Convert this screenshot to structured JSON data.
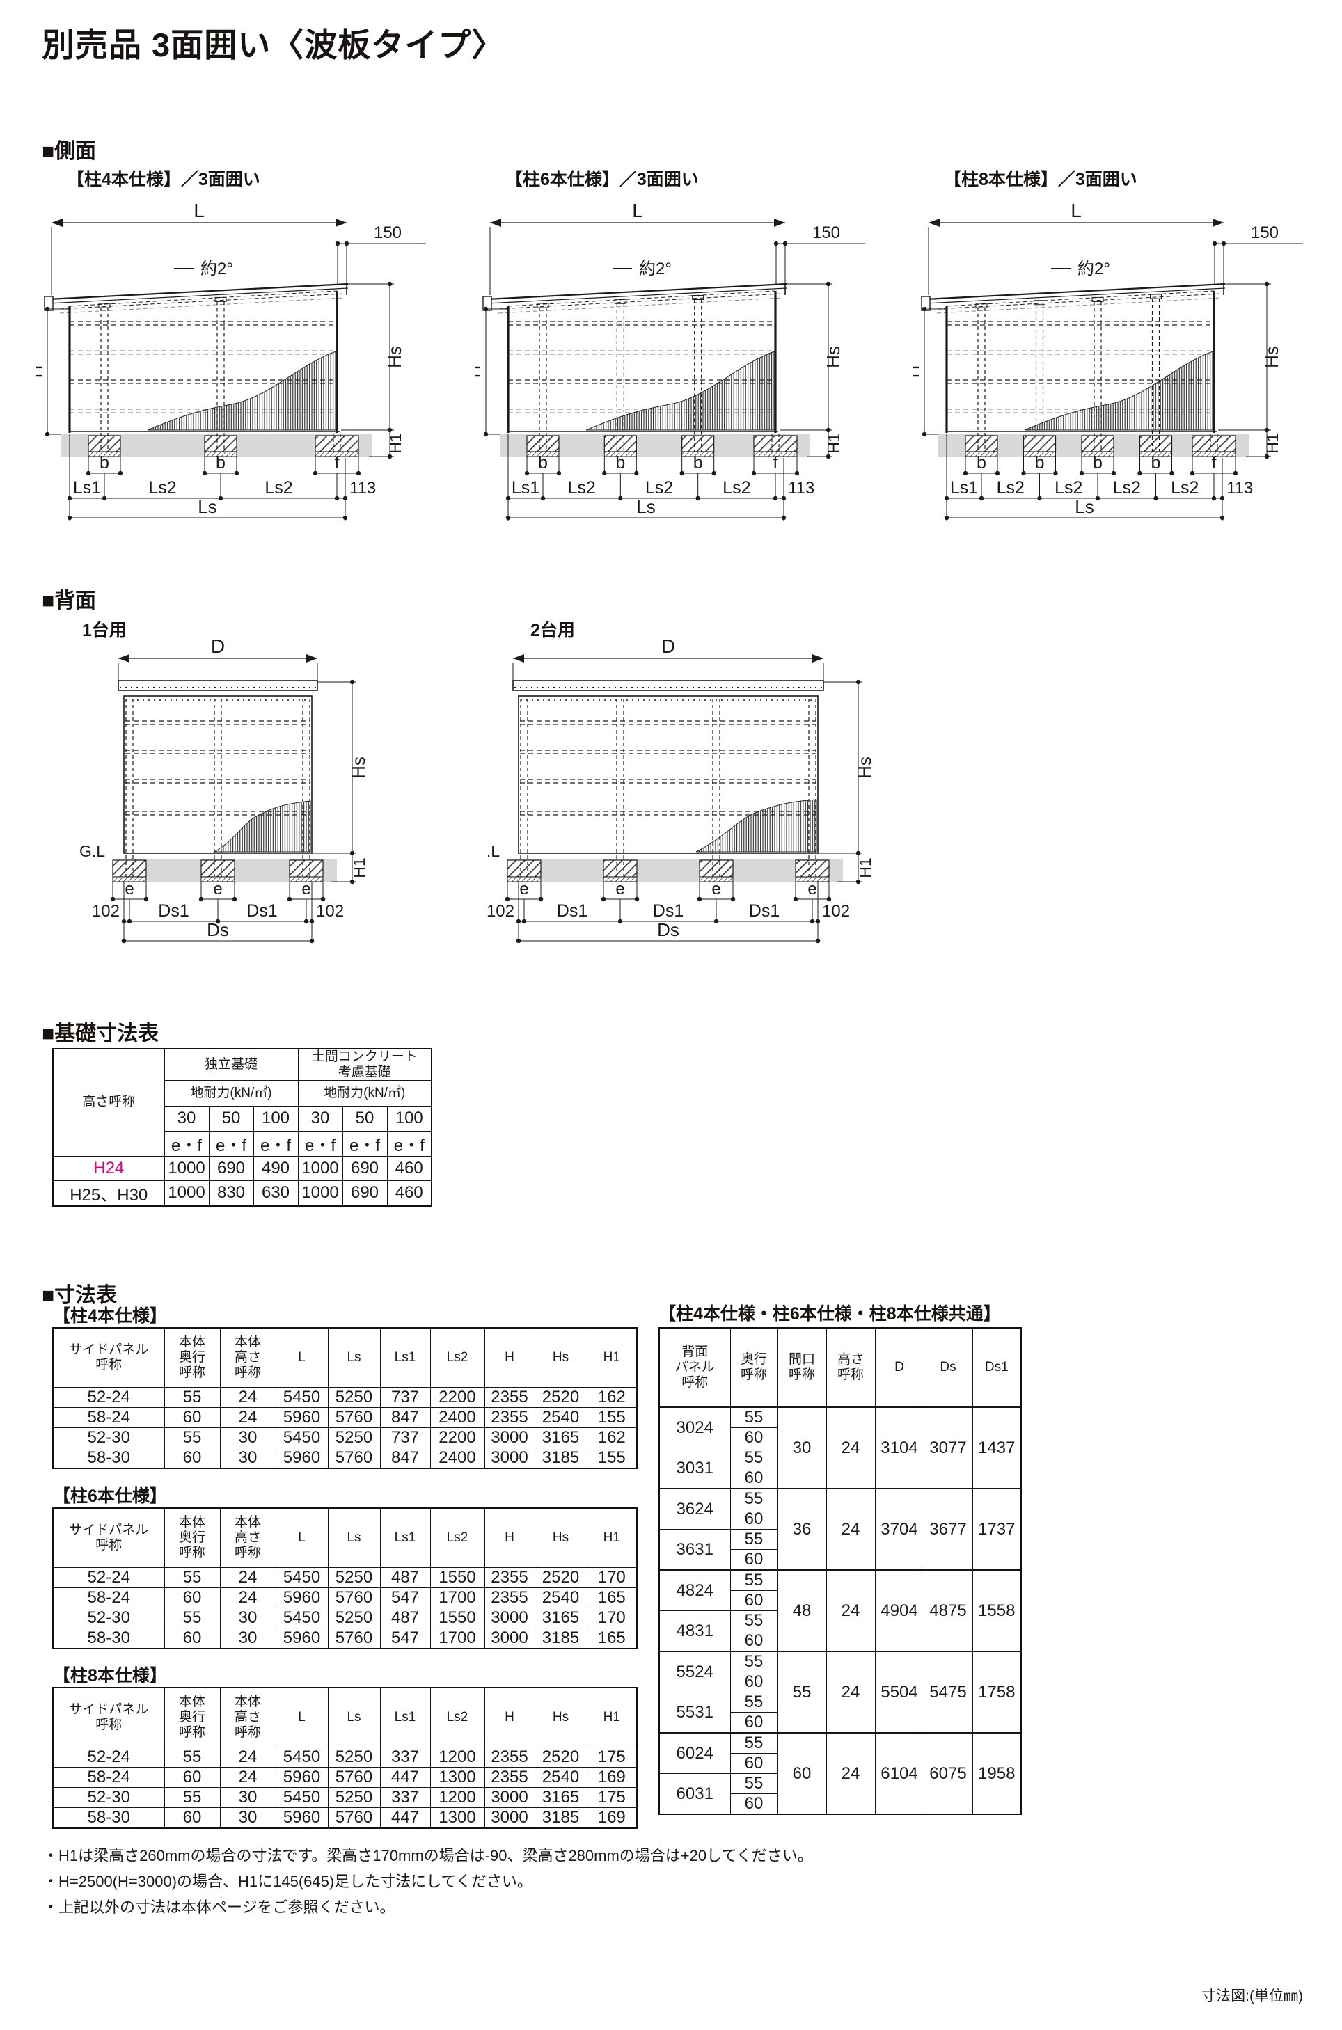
{
  "title": "別売品 3面囲い〈波板タイプ〉",
  "unit_note": "寸法図:(単位㎜)",
  "sections": {
    "side": "■側面",
    "back": "■背面",
    "foundation": "■基礎寸法表",
    "dimensions": "■寸法表"
  },
  "side_view": {
    "variants": [
      {
        "title": "【柱4本仕様】／3面囲い",
        "intermediate_posts": 2
      },
      {
        "title": "【柱6本仕様】／3面囲い",
        "intermediate_posts": 3
      },
      {
        "title": "【柱8本仕様】／3面囲い",
        "intermediate_posts": 4
      }
    ],
    "labels": {
      "overall": "L",
      "overhang": "150",
      "slope": "約2°",
      "height_front": "H",
      "height_side": "Hs",
      "ground_clearance": "H1",
      "foundation_b": "b",
      "foundation_f": "f",
      "span_first": "Ls1",
      "span_mid": "Ls2",
      "edge": "113",
      "side_total": "Ls"
    }
  },
  "back_view": {
    "variants": [
      {
        "title": "1台用",
        "posts": 3
      },
      {
        "title": "2台用",
        "posts": 4
      }
    ],
    "labels": {
      "overall": "D",
      "height_side": "Hs",
      "ground_line": "G.L",
      "ground_clearance": "H1",
      "foundation_e": "e",
      "edge": "102",
      "span": "Ds1",
      "back_total": "Ds"
    }
  },
  "foundation_table": {
    "corner_header": "高さ呼称",
    "groups": [
      "独立基礎",
      "土間コンクリート\n考慮基礎"
    ],
    "sub_header": "地耐力(kN/㎡)",
    "loads": [
      "30",
      "50",
      "100",
      "30",
      "50",
      "100"
    ],
    "ef_label": "e・f",
    "rows": [
      {
        "label": "H24",
        "highlight": true,
        "values": [
          "1000",
          "690",
          "490",
          "1000",
          "690",
          "460"
        ]
      },
      {
        "label": "H25、H30",
        "highlight": false,
        "values": [
          "1000",
          "830",
          "630",
          "1000",
          "690",
          "460"
        ]
      }
    ]
  },
  "dimension_tables": [
    {
      "title": "【柱4本仕様】",
      "headers": [
        "サイドパネル\n呼称",
        "本体\n奥行\n呼称",
        "本体\n高さ\n呼称",
        "L",
        "Ls",
        "Ls1",
        "Ls2",
        "H",
        "Hs",
        "H1"
      ],
      "rows": [
        [
          "52-24",
          "55",
          "24",
          "5450",
          "5250",
          "737",
          "2200",
          "2355",
          "2520",
          "162"
        ],
        [
          "58-24",
          "60",
          "24",
          "5960",
          "5760",
          "847",
          "2400",
          "2355",
          "2540",
          "155"
        ],
        [
          "52-30",
          "55",
          "30",
          "5450",
          "5250",
          "737",
          "2200",
          "3000",
          "3165",
          "162"
        ],
        [
          "58-30",
          "60",
          "30",
          "5960",
          "5760",
          "847",
          "2400",
          "3000",
          "3185",
          "155"
        ]
      ]
    },
    {
      "title": "【柱6本仕様】",
      "headers": [
        "サイドパネル\n呼称",
        "本体\n奥行\n呼称",
        "本体\n高さ\n呼称",
        "L",
        "Ls",
        "Ls1",
        "Ls2",
        "H",
        "Hs",
        "H1"
      ],
      "rows": [
        [
          "52-24",
          "55",
          "24",
          "5450",
          "5250",
          "487",
          "1550",
          "2355",
          "2520",
          "170"
        ],
        [
          "58-24",
          "60",
          "24",
          "5960",
          "5760",
          "547",
          "1700",
          "2355",
          "2540",
          "165"
        ],
        [
          "52-30",
          "55",
          "30",
          "5450",
          "5250",
          "487",
          "1550",
          "3000",
          "3165",
          "170"
        ],
        [
          "58-30",
          "60",
          "30",
          "5960",
          "5760",
          "547",
          "1700",
          "3000",
          "3185",
          "165"
        ]
      ]
    },
    {
      "title": "【柱8本仕様】",
      "headers": [
        "サイドパネル\n呼称",
        "本体\n奥行\n呼称",
        "本体\n高さ\n呼称",
        "L",
        "Ls",
        "Ls1",
        "Ls2",
        "H",
        "Hs",
        "H1"
      ],
      "rows": [
        [
          "52-24",
          "55",
          "24",
          "5450",
          "5250",
          "337",
          "1200",
          "2355",
          "2520",
          "175"
        ],
        [
          "58-24",
          "60",
          "24",
          "5960",
          "5760",
          "447",
          "1300",
          "2355",
          "2540",
          "169"
        ],
        [
          "52-30",
          "55",
          "30",
          "5450",
          "5250",
          "337",
          "1200",
          "3000",
          "3165",
          "175"
        ],
        [
          "58-30",
          "60",
          "30",
          "5960",
          "5760",
          "447",
          "1300",
          "3000",
          "3185",
          "169"
        ]
      ]
    }
  ],
  "common_table": {
    "title": "【柱4本仕様・柱6本仕様・柱8本仕様共通】",
    "headers": [
      "背面\nパネル\n呼称",
      "奥行\n呼称",
      "間口\n呼称",
      "高さ\n呼称",
      "D",
      "Ds",
      "Ds1"
    ],
    "depth_values": [
      "55",
      "60"
    ],
    "groups": [
      {
        "panels": [
          "3024",
          "3031"
        ],
        "width": "30",
        "height": "24",
        "D": "3104",
        "Ds": "3077",
        "Ds1": "1437"
      },
      {
        "panels": [
          "3624",
          "3631"
        ],
        "width": "36",
        "height": "24",
        "D": "3704",
        "Ds": "3677",
        "Ds1": "1737"
      },
      {
        "panels": [
          "4824",
          "4831"
        ],
        "width": "48",
        "height": "24",
        "D": "4904",
        "Ds": "4875",
        "Ds1": "1558"
      },
      {
        "panels": [
          "5524",
          "5531"
        ],
        "width": "55",
        "height": "24",
        "D": "5504",
        "Ds": "5475",
        "Ds1": "1758"
      },
      {
        "panels": [
          "6024",
          "6031"
        ],
        "width": "60",
        "height": "24",
        "D": "6104",
        "Ds": "6075",
        "Ds1": "1958"
      }
    ]
  },
  "notes": [
    "・H1は梁高さ260mmの場合の寸法です。梁高さ170mmの場合は-90、梁高さ280mmの場合は+20してください。",
    "・H=2500(H=3000)の場合、H1に145(645)足した寸法にしてください。",
    "・上記以外の寸法は本体ページをご参照ください。"
  ],
  "colors": {
    "accent": "#e4007f",
    "ink": "#1b1b1b",
    "ground": "#d8d8d8"
  }
}
